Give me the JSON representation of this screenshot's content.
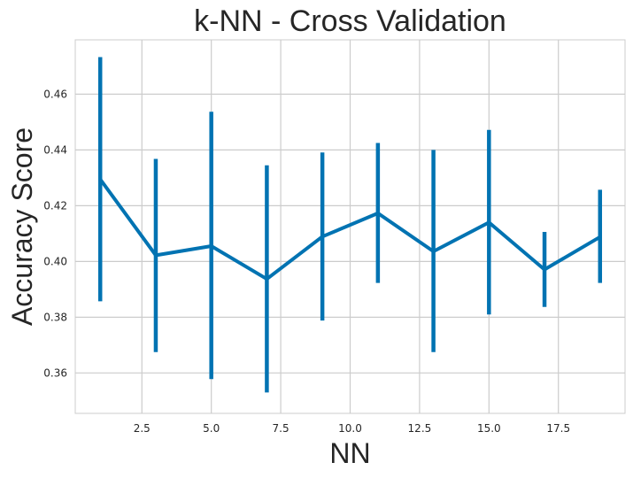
{
  "chart_data": {
    "type": "line",
    "title": "k-NN - Cross Validation",
    "xlabel": "NN",
    "ylabel": "Accuracy Score",
    "xlim": [
      0.1,
      19.9
    ],
    "ylim": [
      0.3455,
      0.4795
    ],
    "x_ticks": [
      2.5,
      5.0,
      7.5,
      10.0,
      12.5,
      15.0,
      17.5
    ],
    "x_tick_labels": [
      "2.5",
      "5.0",
      "7.5",
      "10.0",
      "12.5",
      "15.0",
      "17.5"
    ],
    "y_ticks": [
      0.36,
      0.38,
      0.4,
      0.42,
      0.44,
      0.46
    ],
    "y_tick_labels": [
      "0.36",
      "0.38",
      "0.40",
      "0.42",
      "0.44",
      "0.46"
    ],
    "grid": true,
    "color": "#0173b2",
    "series": [
      {
        "x": [
          1,
          3,
          5,
          7,
          9,
          11,
          13,
          15,
          17,
          19
        ],
        "y": [
          0.4295,
          0.4022,
          0.4055,
          0.3937,
          0.4089,
          0.4173,
          0.4036,
          0.414,
          0.3971,
          0.4088
        ],
        "y_low": [
          0.3857,
          0.3675,
          0.3578,
          0.353,
          0.3788,
          0.3923,
          0.3675,
          0.381,
          0.3837,
          0.3923
        ],
        "y_high": [
          0.4733,
          0.4368,
          0.4537,
          0.4345,
          0.4391,
          0.4425,
          0.44,
          0.4472,
          0.4106,
          0.4257
        ]
      }
    ]
  }
}
